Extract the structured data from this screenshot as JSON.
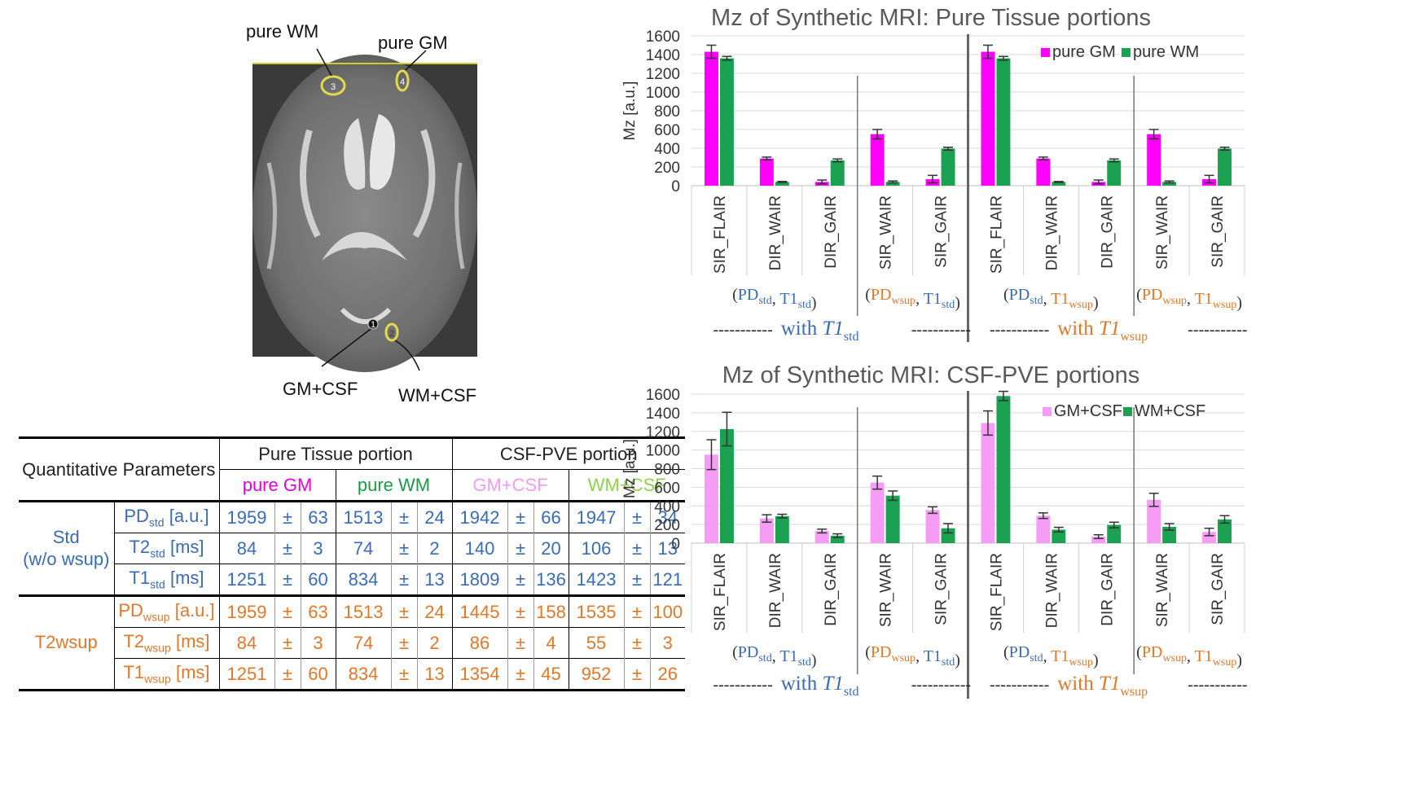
{
  "brain": {
    "labels": {
      "pure_wm": "pure WM",
      "pure_gm": "pure GM",
      "gm_csf": "GM+CSF",
      "wm_csf": "WM+CSF"
    },
    "roi_numbers": [
      "1",
      "2",
      "3",
      "4"
    ]
  },
  "table": {
    "header_param": "Quantitative Parameters",
    "group_pure": "Pure Tissue portion",
    "group_pve": "CSF-PVE portion",
    "cols": [
      "pure GM",
      "pure WM",
      "GM+CSF",
      "WM+CSF"
    ],
    "pm": "±",
    "sections": [
      {
        "name": "Std",
        "name2": "(w/o wsup)",
        "rows": [
          {
            "param": "PD",
            "sub": "std",
            "unit": " [a.u.]",
            "vals": [
              "1959",
              "63",
              "1513",
              "24",
              "1942",
              "66",
              "1947",
              "34"
            ]
          },
          {
            "param": "T2",
            "sub": "std",
            "unit": " [ms]",
            "vals": [
              "84",
              "3",
              "74",
              "2",
              "140",
              "20",
              "106",
              "13"
            ]
          },
          {
            "param": "T1",
            "sub": "std",
            "unit": " [ms]",
            "vals": [
              "1251",
              "60",
              "834",
              "13",
              "1809",
              "136",
              "1423",
              "121"
            ]
          }
        ]
      },
      {
        "name": "T2wsup",
        "name2": "",
        "rows": [
          {
            "param": "PD",
            "sub": "wsup",
            "unit": " [a.u.]",
            "vals": [
              "1959",
              "63",
              "1513",
              "24",
              "1445",
              "158",
              "1535",
              "100"
            ]
          },
          {
            "param": "T2",
            "sub": "wsup",
            "unit": " [ms]",
            "vals": [
              "84",
              "3",
              "74",
              "2",
              "86",
              "4",
              "55",
              "3"
            ]
          },
          {
            "param": "T1",
            "sub": "wsup",
            "unit": " [ms]",
            "vals": [
              "1251",
              "60",
              "834",
              "13",
              "1354",
              "45",
              "952",
              "26"
            ]
          }
        ]
      }
    ]
  },
  "group_labels": {
    "pd": "PD",
    "t1": "T1",
    "std": "std",
    "wsup": "wsup",
    "with": "with ",
    "t1_italic": "T1",
    "dashes": "-----------"
  },
  "colors": {
    "pure_gm": "#ff00ff",
    "pure_wm": "#1aa151",
    "gm_csf": "#f59cf5",
    "wm_csf": "#1aa151",
    "blue_text": "#3a6bb5",
    "orange_text": "#e0782a"
  },
  "chart_data": [
    {
      "type": "bar",
      "title": "Mz of Synthetic MRI: Pure Tissue portions",
      "ylabel": "Mz [a.u.]",
      "ylim": [
        0,
        1600
      ],
      "yticks": [
        0,
        200,
        400,
        600,
        800,
        1000,
        1200,
        1400,
        1600
      ],
      "grid": true,
      "legend_position": "top-right",
      "categories": [
        "SIR_FLAIR",
        "DIR_WAIR",
        "DIR_GAIR",
        "SIR_WAIR",
        "SIR_GAIR",
        "SIR_FLAIR",
        "DIR_WAIR",
        "DIR_GAIR",
        "SIR_WAIR",
        "SIR_GAIR"
      ],
      "series": [
        {
          "name": "pure GM",
          "color": "#ff00ff",
          "values": [
            1430,
            290,
            40,
            550,
            70,
            1430,
            290,
            40,
            550,
            70
          ],
          "errors": [
            70,
            15,
            20,
            50,
            40,
            70,
            15,
            20,
            50,
            40
          ]
        },
        {
          "name": "pure WM",
          "color": "#1aa151",
          "values": [
            1360,
            40,
            270,
            40,
            395,
            1360,
            40,
            270,
            40,
            395
          ],
          "errors": [
            20,
            5,
            15,
            10,
            15,
            20,
            5,
            15,
            10,
            15
          ]
        }
      ]
    },
    {
      "type": "bar",
      "title": "Mz of Synthetic MRI: CSF-PVE portions",
      "ylabel": "Mz [a.u.]",
      "ylim": [
        0,
        1600
      ],
      "yticks": [
        0,
        200,
        400,
        600,
        800,
        1000,
        1200,
        1400,
        1600
      ],
      "grid": true,
      "legend_position": "top-right",
      "categories": [
        "SIR_FLAIR",
        "DIR_WAIR",
        "DIR_GAIR",
        "SIR_WAIR",
        "SIR_GAIR",
        "SIR_FLAIR",
        "DIR_WAIR",
        "DIR_GAIR",
        "SIR_WAIR",
        "SIR_GAIR"
      ],
      "series": [
        {
          "name": "GM+CSF",
          "color": "#f59cf5",
          "values": [
            950,
            265,
            130,
            650,
            355,
            1290,
            295,
            70,
            465,
            120
          ],
          "errors": [
            160,
            40,
            20,
            70,
            35,
            130,
            30,
            20,
            70,
            40
          ]
        },
        {
          "name": "WM+CSF",
          "color": "#1aa151",
          "values": [
            1225,
            290,
            80,
            510,
            160,
            1580,
            145,
            195,
            175,
            255
          ],
          "errors": [
            180,
            20,
            20,
            50,
            50,
            50,
            25,
            30,
            35,
            40
          ]
        }
      ]
    }
  ]
}
